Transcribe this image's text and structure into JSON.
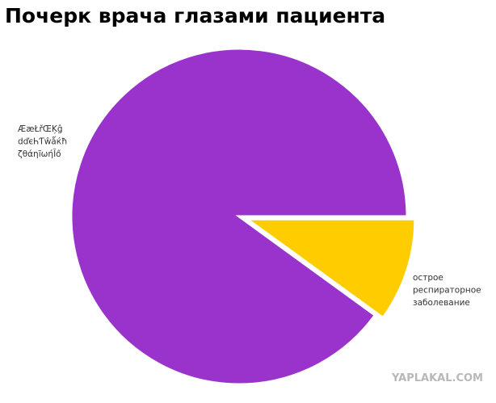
{
  "chart_data": {
    "type": "pie",
    "title": "Почерк врача глазами пациента",
    "categories": [
      "ÆæŁřŒĶĝ dďєҺƬŵǻќħ ζθάηĩωήĬő",
      "острое респираторное заболевание"
    ],
    "values": [
      90,
      10
    ],
    "colors": [
      "#9933cc",
      "#ffcc00"
    ],
    "explode": [
      0,
      0.05
    ],
    "startangle": 0,
    "counterclock": true,
    "watermark": "YAPLAKAL.COM"
  }
}
